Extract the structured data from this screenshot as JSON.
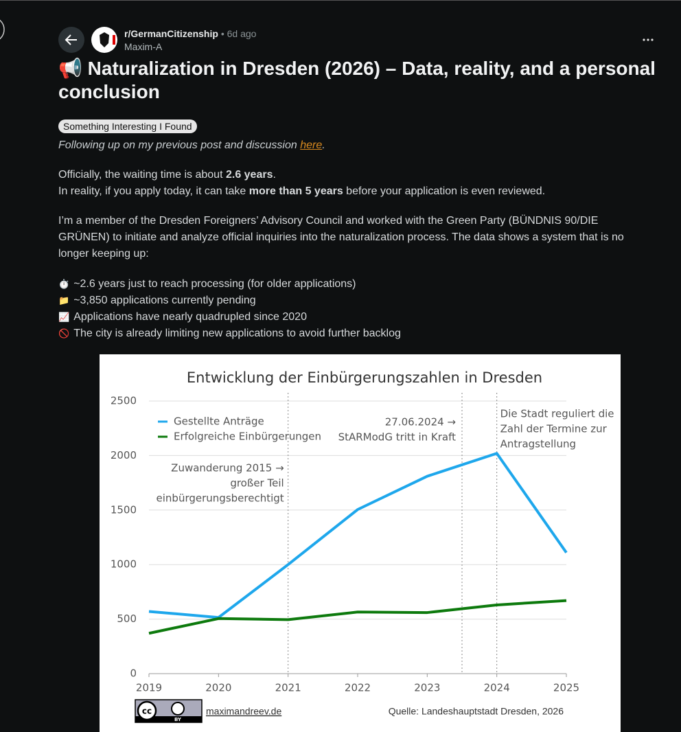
{
  "header": {
    "subreddit": "r/GermanCitizenship",
    "separator": "•",
    "time": "6d ago",
    "author": "Maxim-A"
  },
  "post": {
    "title_icon": "📢",
    "title": "Naturalization in Dresden (2026) – Data, reality, and a personal conclusion",
    "flair": "Something Interesting I Found",
    "intro": {
      "before": "Following up on my previous post and discussion ",
      "link": "here",
      "after": "."
    },
    "paragraphs": [
      [
        [
          {
            "text": "Officially, the waiting time is about ",
            "bold": false
          },
          {
            "text": "2.6 years",
            "bold": true
          },
          {
            "text": ".",
            "bold": false
          }
        ],
        [
          {
            "text": "In reality, if you apply today, it can take ",
            "bold": false
          },
          {
            "text": "more than 5 years",
            "bold": true
          },
          {
            "text": " before your application is even reviewed.",
            "bold": false
          }
        ]
      ],
      [
        [
          {
            "text": "I’m a member of the Dresden Foreigners’ Advisory Council and worked with the Green Party (BÜNDNIS 90/DIE GRÜNEN) to initiate and analyze official inquiries into the naturalization process. The data shows a system that is no longer keeping up:",
            "bold": false
          }
        ]
      ]
    ],
    "bullets": [
      {
        "icon": "⏱️",
        "text": "~2.6 years just to reach processing (for older applications)"
      },
      {
        "icon": "📁",
        "text": "~3,850 applications currently pending"
      },
      {
        "icon": "📈",
        "text": "Applications have nearly quadrupled since 2020"
      },
      {
        "icon": "🚫",
        "text": "The city is already limiting new applications to avoid further backlog"
      }
    ]
  },
  "figure": {
    "type": "line",
    "title": "Entwicklung der Einbürgerungszahlen in Dresden",
    "x": [
      2019,
      2020,
      2021,
      2022,
      2023,
      2024,
      2025
    ],
    "xlim": [
      2019,
      2025
    ],
    "xticks": [
      2019,
      2020,
      2021,
      2022,
      2023,
      2024,
      2025
    ],
    "ylim": [
      0,
      2500
    ],
    "yticks": [
      0,
      500,
      1000,
      1500,
      2000,
      2500
    ],
    "grid": true,
    "legend": "upper-left",
    "series": [
      {
        "name": "Gestellte Anträge",
        "color": "#1ea7ec",
        "values": [
          570,
          515,
          1000,
          1505,
          1810,
          2020,
          1110
        ]
      },
      {
        "name": "Erfolgreiche Einbürgerungen",
        "color": "#0d7a0d",
        "values": [
          370,
          505,
          495,
          565,
          560,
          630,
          670
        ]
      }
    ],
    "annotations": [
      {
        "x": 2021,
        "lines": [
          "Zuwanderung 2015 →",
          "großer Teil",
          "einbürgerungsberechtigt"
        ]
      },
      {
        "x": 2023.5,
        "lines": [
          "27.06.2024 →",
          "StARModG tritt in Kraft"
        ]
      },
      {
        "x": 2024,
        "lines": [
          "Die Stadt reguliert die",
          "Zahl der Termine zur",
          "Antragstellung"
        ]
      }
    ],
    "license_mark": "cc",
    "license_badge": "BY",
    "website": "maximandreev.de",
    "source": "Quelle: Landeshauptstadt Dresden, 2026"
  }
}
